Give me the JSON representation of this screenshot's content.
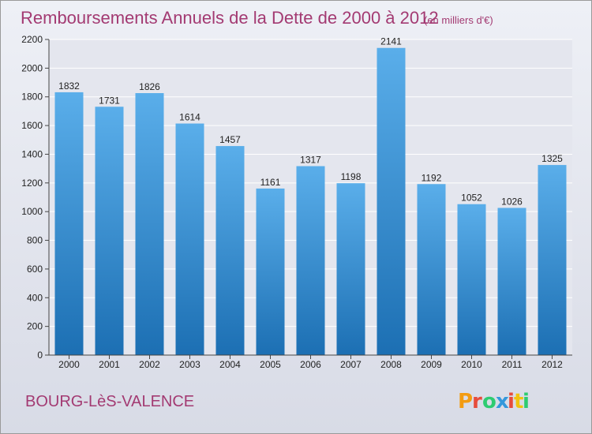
{
  "title": "Remboursements Annuels de la Dette de 2000 à 2012",
  "subtitle": "(en milliers d'€)",
  "commune": "BOURG-LèS-VALENCE",
  "logo": {
    "text": "Proxiti",
    "colors": [
      "#f39c12",
      "#e74c3c",
      "#2ecc71",
      "#3498db",
      "#e74c3c",
      "#f1c40f",
      "#2ecc71"
    ]
  },
  "colors": {
    "title": "#a33a72",
    "bar_top": "#5aaeea",
    "bar_bottom": "#1c6fb3",
    "background_top": "#eef0f6",
    "background_bottom": "#d8dbe6",
    "plot_background": "#e4e6ee",
    "gridline": "#ffffff"
  },
  "chart_data": {
    "type": "bar",
    "categories": [
      "2000",
      "2001",
      "2002",
      "2003",
      "2004",
      "2005",
      "2006",
      "2007",
      "2008",
      "2009",
      "2010",
      "2011",
      "2012"
    ],
    "values": [
      1832,
      1731,
      1826,
      1614,
      1457,
      1161,
      1317,
      1198,
      2141,
      1192,
      1052,
      1026,
      1325
    ],
    "ylim": [
      0,
      2200
    ],
    "yticks": [
      0,
      200,
      400,
      600,
      800,
      1000,
      1200,
      1400,
      1600,
      1800,
      2000,
      2200
    ],
    "grid": true,
    "xlabel": "",
    "ylabel": ""
  }
}
